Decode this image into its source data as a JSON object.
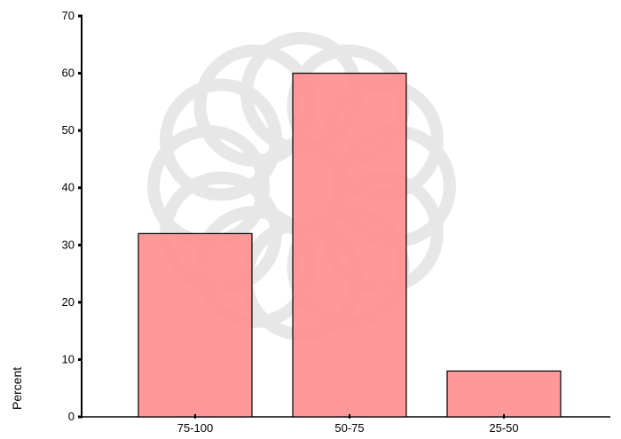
{
  "chart_data": {
    "type": "bar",
    "categories": [
      "75-100",
      "50-75",
      "25-50"
    ],
    "values": [
      32,
      60,
      8
    ],
    "title": "",
    "xlabel": "",
    "ylabel": "Percent",
    "ylim": [
      0,
      70
    ],
    "yticks": [
      0,
      10,
      20,
      30,
      40,
      50,
      60,
      70
    ],
    "grid": false,
    "legend": "none",
    "bar_color": "#ff8f8f",
    "bar_edge_color": "#000000"
  }
}
